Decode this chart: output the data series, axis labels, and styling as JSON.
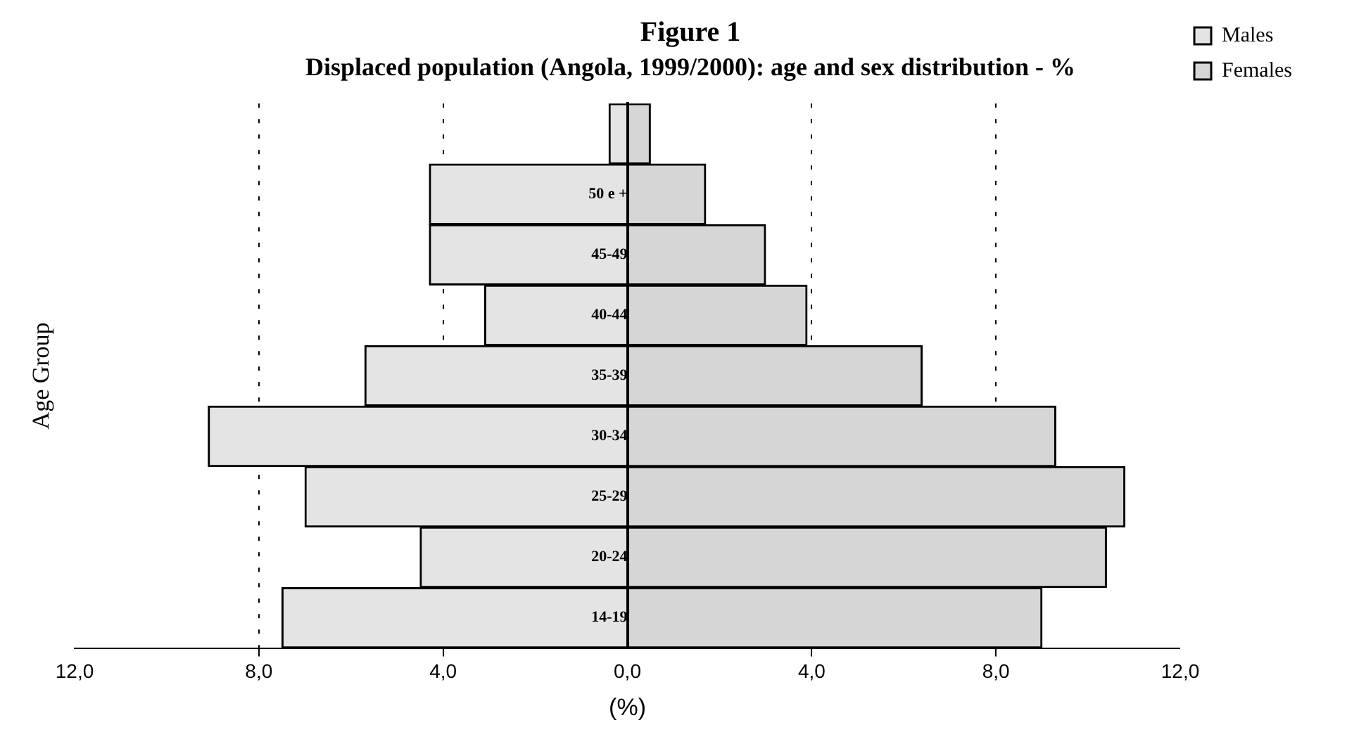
{
  "chart_data": {
    "type": "bar",
    "orientation": "horizontal",
    "title": "Figure 1",
    "subtitle": "Displaced population (Angola, 1999/2000): age and sex distribution - %",
    "xlabel": "(%)",
    "ylabel": "Age Group",
    "categories": [
      null,
      "50 e +",
      "45-49",
      "40-44",
      "35-39",
      "30-34",
      "25-29",
      "20-24",
      "14-19"
    ],
    "series": [
      {
        "name": "Males",
        "color": "#e4e4e4",
        "values": [
          -0.4,
          -4.3,
          -4.3,
          -3.1,
          -5.7,
          -9.1,
          -7.0,
          -4.5,
          -7.5
        ]
      },
      {
        "name": "Females",
        "color": "#d6d6d6",
        "values": [
          0.5,
          1.7,
          3.0,
          3.9,
          6.4,
          9.3,
          10.8,
          10.4,
          9.0
        ]
      }
    ],
    "xlim": [
      -12,
      12
    ],
    "xticks": [
      {
        "value": -12,
        "label": "12,0"
      },
      {
        "value": -8,
        "label": "8,0"
      },
      {
        "value": -4,
        "label": "4,0"
      },
      {
        "value": 0,
        "label": "0,0"
      },
      {
        "value": 4,
        "label": "4,0"
      },
      {
        "value": 8,
        "label": "8,0"
      },
      {
        "value": 12,
        "label": "12,0"
      }
    ],
    "grid": "x",
    "legend": "top right",
    "stacked": true
  }
}
